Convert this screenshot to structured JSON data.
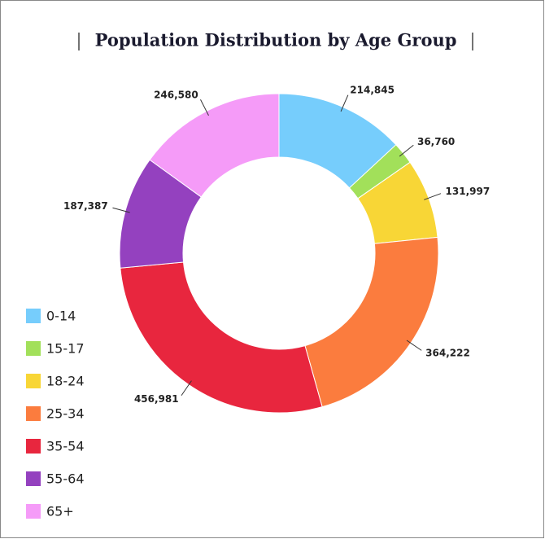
{
  "chart_data": {
    "type": "donut",
    "title": "Population Distribution by Age Group",
    "categories": [
      "0-14",
      "15-17",
      "18-24",
      "25-34",
      "35-54",
      "55-64",
      "65+"
    ],
    "values": [
      214845,
      36760,
      131997,
      364222,
      456981,
      187387,
      246580
    ],
    "value_labels": [
      "214,845",
      "36,760",
      "131,997",
      "364,222",
      "456,981",
      "187,387",
      "246,580"
    ],
    "colors": [
      "#76cdfc",
      "#a2e05a",
      "#f8d636",
      "#fb7c3e",
      "#e8263e",
      "#9441bf",
      "#f59bf8"
    ],
    "legend": "bottom-left"
  }
}
